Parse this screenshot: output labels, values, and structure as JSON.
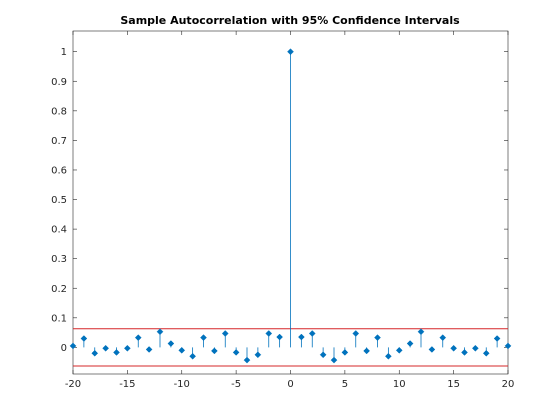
{
  "chart_data": {
    "type": "stem",
    "title": "Sample Autocorrelation with 95% Confidence Intervals",
    "xlabel": "",
    "ylabel": "",
    "xlim": [
      -20,
      20
    ],
    "ylim": [
      -0.09,
      1.07
    ],
    "x_ticks": [
      -20,
      -15,
      -10,
      -5,
      0,
      5,
      10,
      15,
      20
    ],
    "y_ticks": [
      0,
      0.1,
      0.2,
      0.3,
      0.4,
      0.5,
      0.6,
      0.7,
      0.8,
      0.9,
      1
    ],
    "x_tick_labels": [
      "-20",
      "-15",
      "-10",
      "-5",
      "0",
      "5",
      "10",
      "15",
      "20"
    ],
    "y_tick_labels": [
      "0",
      "0.1",
      "0.2",
      "0.3",
      "0.4",
      "0.5",
      "0.6",
      "0.7",
      "0.8",
      "0.9",
      "1"
    ],
    "confidence_bounds": [
      0.063,
      -0.063
    ],
    "grid": false,
    "x": [
      -20,
      -19,
      -18,
      -17,
      -16,
      -15,
      -14,
      -13,
      -12,
      -11,
      -10,
      -9,
      -8,
      -7,
      -6,
      -5,
      -4,
      -3,
      -2,
      -1,
      0,
      1,
      2,
      3,
      4,
      5,
      6,
      7,
      8,
      9,
      10,
      11,
      12,
      13,
      14,
      15,
      16,
      17,
      18,
      19,
      20
    ],
    "values": [
      0.005,
      0.03,
      -0.02,
      -0.003,
      -0.017,
      -0.003,
      0.033,
      -0.007,
      0.053,
      0.013,
      -0.01,
      -0.03,
      0.033,
      -0.012,
      0.047,
      -0.017,
      -0.043,
      -0.025,
      0.047,
      0.035,
      1.0,
      0.035,
      0.047,
      -0.025,
      -0.043,
      -0.017,
      0.047,
      -0.012,
      0.033,
      -0.03,
      -0.01,
      0.013,
      0.053,
      -0.007,
      0.033,
      -0.003,
      -0.017,
      -0.003,
      -0.02,
      0.03,
      0.005
    ],
    "colors": {
      "stem": "#0072bd",
      "bound": "#d62728",
      "axis": "#262626"
    }
  }
}
